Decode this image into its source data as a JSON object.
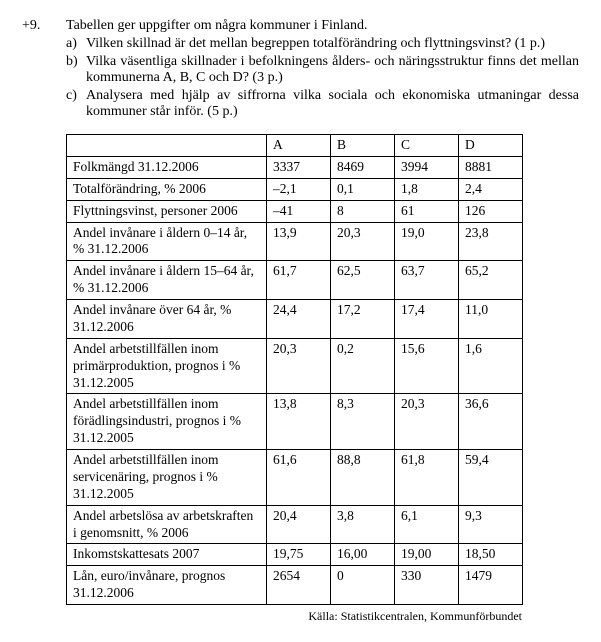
{
  "question": {
    "number": "+9.",
    "intro": "Tabellen ger uppgifter om några kommuner i Finland.",
    "subitems": [
      {
        "letter": "a)",
        "text": "Vilken skillnad är det mellan begreppen totalförändring och flyttningsvinst? (1 p.)"
      },
      {
        "letter": "b)",
        "text": "Vilka väsentliga skillnader i befolkningens ålders- och näringsstruktur finns det mellan kommunerna A, B, C och D? (3 p.)"
      },
      {
        "letter": "c)",
        "text": "Analysera med hjälp av siffrorna vilka sociala och ekonomiska utmaningar dessa kommuner står inför. (5 p.)"
      }
    ]
  },
  "table": {
    "columns": [
      "",
      "A",
      "B",
      "C",
      "D"
    ],
    "rows": [
      {
        "label": "Folkmängd 31.12.2006",
        "A": "3337",
        "B": "8469",
        "C": "3994",
        "D": "8881"
      },
      {
        "label": "Totalförändring, % 2006",
        "A": "–2,1",
        "B": "0,1",
        "C": "1,8",
        "D": "2,4"
      },
      {
        "label": "Flyttningsvinst, personer 2006",
        "A": "–41",
        "B": "8",
        "C": "61",
        "D": "126"
      },
      {
        "label": "Andel invånare i åldern 0–14 år, % 31.12.2006",
        "A": "13,9",
        "B": "20,3",
        "C": "19,0",
        "D": "23,8"
      },
      {
        "label": "Andel invånare i åldern 15–64 år, % 31.12.2006",
        "A": "61,7",
        "B": "62,5",
        "C": "63,7",
        "D": "65,2"
      },
      {
        "label": "Andel invånare över 64 år, % 31.12.2006",
        "A": "24,4",
        "B": "17,2",
        "C": "17,4",
        "D": "11,0"
      },
      {
        "label": "Andel arbetstillfällen inom primärproduktion, prognos i % 31.12.2005",
        "A": "20,3",
        "B": "0,2",
        "C": "15,6",
        "D": "1,6"
      },
      {
        "label": "Andel arbetstillfällen inom förädlingsindustri, prognos i % 31.12.2005",
        "A": "13,8",
        "B": "8,3",
        "C": "20,3",
        "D": "36,6"
      },
      {
        "label": "Andel arbetstillfällen inom servicenäring, prognos i % 31.12.2005",
        "A": "61,6",
        "B": "88,8",
        "C": "61,8",
        "D": "59,4"
      },
      {
        "label": "Andel arbetslösa av arbetskraften i genomsnitt, % 2006",
        "A": "20,4",
        "B": "3,8",
        "C": "6,1",
        "D": "9,3"
      },
      {
        "label": "Inkomstskattesats 2007",
        "A": "19,75",
        "B": "16,00",
        "C": "19,00",
        "D": "18,50"
      },
      {
        "label": "Lån, euro/invånare, prognos 31.12.2006",
        "A": "2654",
        "B": "0",
        "C": "330",
        "D": "1479"
      }
    ]
  },
  "source": "Källa: Statistikcentralen, Kommunförbundet"
}
